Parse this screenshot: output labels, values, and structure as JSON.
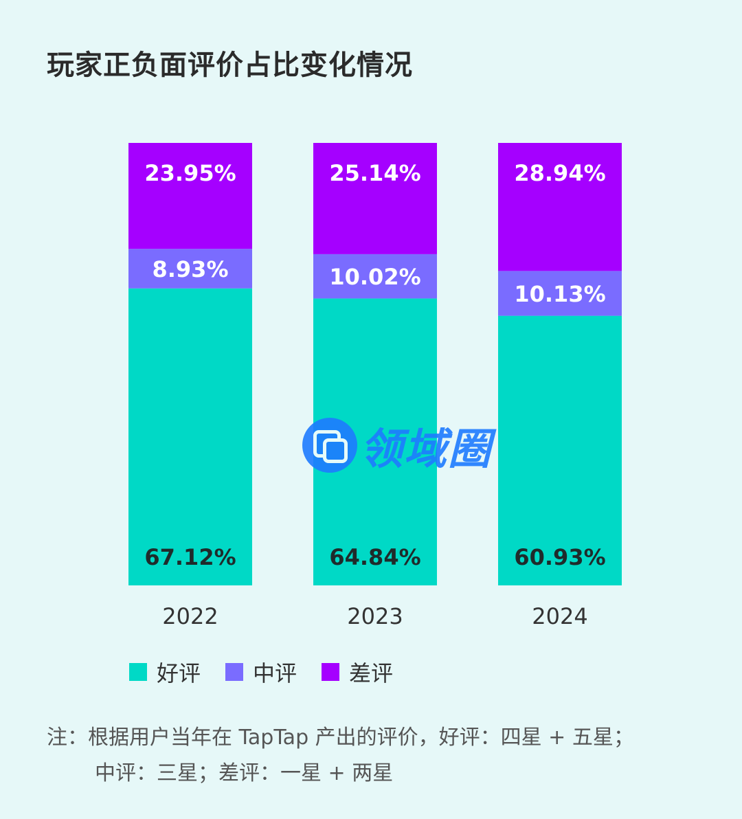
{
  "title": "玩家正负面评价占比变化情况",
  "chart_data": {
    "type": "bar",
    "stacked": true,
    "categories": [
      "2022",
      "2023",
      "2024"
    ],
    "series": [
      {
        "name": "好评",
        "color": "#00d9c6",
        "values": [
          67.12,
          64.84,
          60.93
        ],
        "labels": [
          "67.12%",
          "64.84%",
          "60.93%"
        ]
      },
      {
        "name": "中评",
        "color": "#7a6cff",
        "values": [
          8.93,
          10.02,
          10.13
        ],
        "labels": [
          "8.93%",
          "10.02%",
          "10.13%"
        ]
      },
      {
        "name": "差评",
        "color": "#a500ff",
        "values": [
          23.95,
          25.14,
          28.94
        ],
        "labels": [
          "23.95%",
          "25.14%",
          "28.94%"
        ]
      }
    ],
    "ylim": [
      0,
      100
    ]
  },
  "legend": [
    {
      "label": "好评",
      "color": "#00d9c6"
    },
    {
      "label": "中评",
      "color": "#7a6cff"
    },
    {
      "label": "差评",
      "color": "#a500ff"
    }
  ],
  "note": {
    "line1": "注：根据用户当年在 TapTap 产出的评价，好评：四星 + 五星；",
    "line2": "中评：三星；差评：一星 + 两星"
  },
  "watermark": {
    "text": "领域圈"
  }
}
